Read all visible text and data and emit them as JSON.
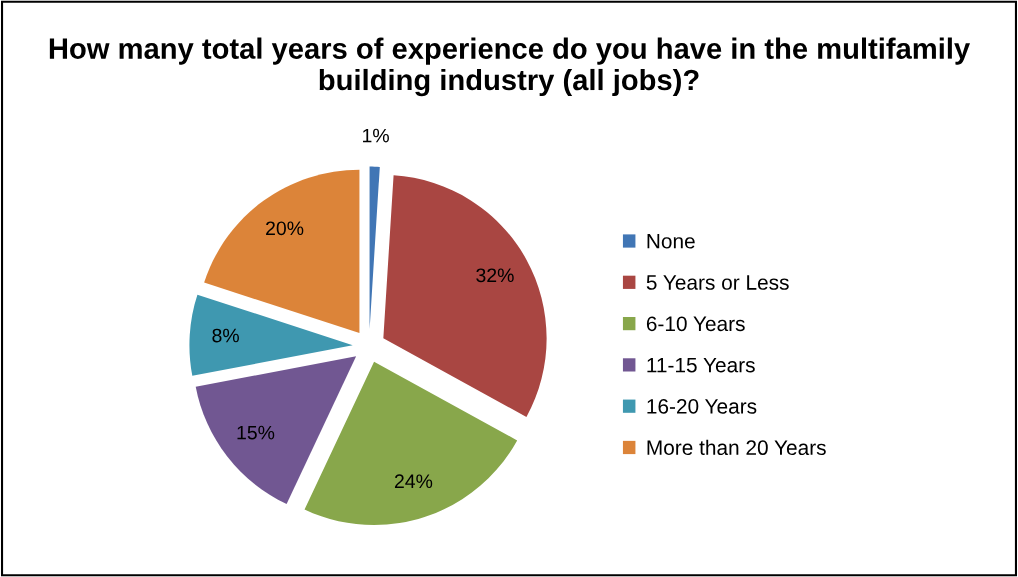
{
  "chart_data": {
    "type": "pie",
    "title": "How many total years of experience do you have in the multifamily building industry (all jobs)?",
    "categories": [
      "None",
      "5 Years or Less",
      "6-10 Years",
      "11-15 Years",
      "16-20 Years",
      "More than 20 Years"
    ],
    "values": [
      1,
      32,
      24,
      15,
      8,
      20
    ],
    "colors": [
      "#4176b5",
      "#a94642",
      "#88a74b",
      "#715792",
      "#3f98b0",
      "#dc8439"
    ],
    "value_labels": [
      "1%",
      "32%",
      "24%",
      "15%",
      "8%",
      "20%"
    ],
    "legend": "right"
  }
}
